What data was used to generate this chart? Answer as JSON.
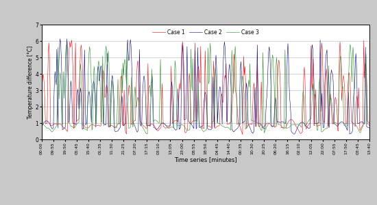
{
  "x_labels": [
    "00:00",
    "09:55",
    "19:50",
    "05:45",
    "15:40",
    "01:35",
    "11:30",
    "21:25",
    "07:20",
    "17:15",
    "03:10",
    "13:05",
    "23:00",
    "08:55",
    "18:50",
    "04:45",
    "14:40",
    "00:35",
    "10:30",
    "20:25",
    "06:20",
    "16:15",
    "02:10",
    "12:05",
    "22:00",
    "07:55",
    "17:50",
    "03:45",
    "13:40"
  ],
  "ylabel": "Temperature difference [°C]",
  "xlabel": "Time series [minutes]",
  "ylim": [
    0,
    7
  ],
  "yticks": [
    0,
    1,
    2,
    3,
    4,
    5,
    6,
    7
  ],
  "legend_labels": [
    "Case 1",
    "Case 2",
    "Case 3"
  ],
  "colors": [
    "#ff0000",
    "#00008b",
    "#228b22"
  ],
  "fig_bg": "#c8c8c8",
  "plot_bg": "#ffffff",
  "grid_color": "#c0c0c0"
}
